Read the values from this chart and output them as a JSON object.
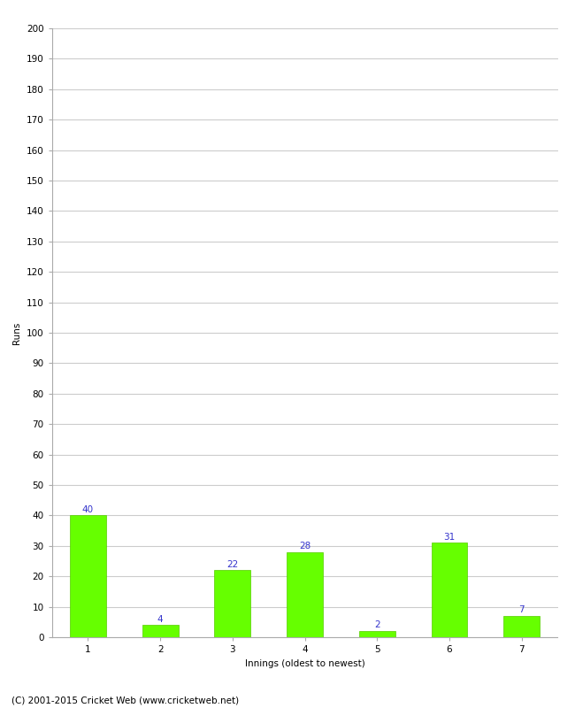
{
  "categories": [
    "1",
    "2",
    "3",
    "4",
    "5",
    "6",
    "7"
  ],
  "values": [
    40,
    4,
    22,
    28,
    2,
    31,
    7
  ],
  "bar_color": "#66ff00",
  "bar_edge_color": "#55cc00",
  "label_color": "#3333cc",
  "xlabel": "Innings (oldest to newest)",
  "ylabel": "Runs",
  "ylim": [
    0,
    200
  ],
  "ytick_step": 10,
  "footer": "(C) 2001-2015 Cricket Web (www.cricketweb.net)",
  "background_color": "#ffffff",
  "grid_color": "#cccccc",
  "label_fontsize": 7.5,
  "axis_fontsize": 7.5,
  "footer_fontsize": 7.5,
  "bar_width": 0.5
}
